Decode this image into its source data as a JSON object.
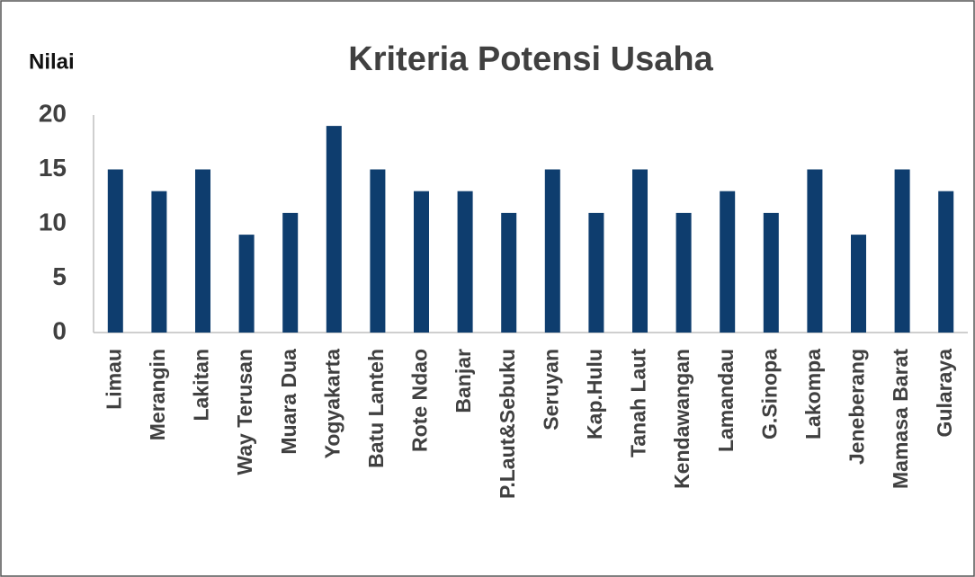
{
  "chart_data": {
    "type": "bar",
    "title": "Kriteria Potensi Usaha",
    "y_label": "Nilai",
    "categories": [
      "Limau",
      "Merangin",
      "Lakitan",
      "Way Terusan",
      "Muara Dua",
      "Yogyakarta",
      "Batu Lanteh",
      "Rote Ndao",
      "Banjar",
      "P.Laut&Sebuku",
      "Seruyan",
      "Kap.Hulu",
      "Tanah Laut",
      "Kendawangan",
      "Lamandau",
      "G.Sinopa",
      "Lakompa",
      "Jeneberang",
      "Mamasa Barat",
      "Gularaya"
    ],
    "values": [
      15,
      13,
      15,
      9,
      11,
      19,
      15,
      13,
      13,
      11,
      15,
      11,
      15,
      11,
      13,
      11,
      15,
      9,
      15,
      13
    ],
    "color": "#0e3d6e",
    "ylim": [
      0,
      20
    ],
    "yticks": [
      0,
      5,
      10,
      15,
      20
    ],
    "grid": false
  }
}
